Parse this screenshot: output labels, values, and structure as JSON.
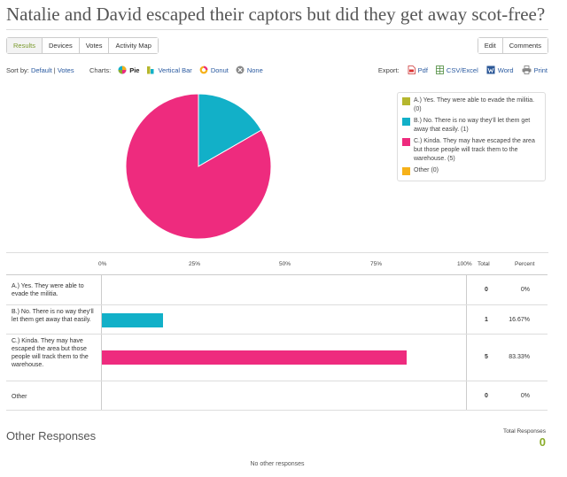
{
  "title": "Natalie and David escaped their captors but did they get away scot-free?",
  "tabs": [
    "Results",
    "Devices",
    "Votes",
    "Activity Map"
  ],
  "right_tabs": [
    "Edit",
    "Comments"
  ],
  "sort": {
    "label": "Sort by:",
    "active": "Default",
    "divider": "|",
    "other": "Votes"
  },
  "charts": {
    "label": "Charts:",
    "options": [
      "Pie",
      "Vertical Bar",
      "Donut",
      "None"
    ],
    "selected": "Pie"
  },
  "export": {
    "label": "Export:",
    "options": [
      "Pdf",
      "CSV/Excel",
      "Word",
      "Print"
    ]
  },
  "colors": {
    "a": "#b5b72e",
    "b": "#12b0c8",
    "c": "#ee2b7e",
    "other": "#f6b119",
    "accent": "#8aac2a",
    "link": "#2a5aa0"
  },
  "legend": [
    "A.) Yes. They were able to evade the militia. (0)",
    "B.) No. There is no way they'll let them get away that easily. (1)",
    "C.) Kinda. They may have escaped the area but those people will track them to the warehouse. (5)",
    "Other (0)"
  ],
  "table": {
    "ticks": [
      "0%",
      "25%",
      "50%",
      "75%",
      "100%"
    ],
    "total_header": "Total",
    "percent_header": "Percent",
    "rows": [
      {
        "label": "A.) Yes. They were able to evade the militia.",
        "total": "0",
        "percent": "0%"
      },
      {
        "label": "B.) No. There is no way they'll let them get away that easily.",
        "total": "1",
        "percent": "16.67%"
      },
      {
        "label": "C.) Kinda. They may have escaped the area but those people will track them to the warehouse.",
        "total": "5",
        "percent": "83.33%"
      },
      {
        "label": "Other",
        "total": "0",
        "percent": "0%"
      }
    ]
  },
  "other_responses": {
    "heading": "Other Responses",
    "total_label": "Total Responses",
    "total_value": "0",
    "empty_text": "No other responses"
  },
  "chart_data": {
    "type": "pie",
    "categories": [
      "A.) Yes. They were able to evade the militia.",
      "B.) No. There is no way they'll let them get away that easily.",
      "C.) Kinda. They may have escaped the area but those people will track them to the warehouse.",
      "Other"
    ],
    "values": [
      0,
      1,
      5,
      0
    ],
    "percentages": [
      0,
      16.67,
      83.33,
      0
    ],
    "legend_position": "right"
  }
}
